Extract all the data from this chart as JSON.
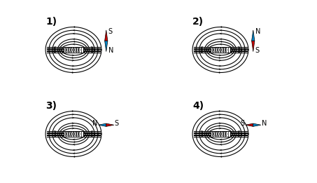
{
  "panels": [
    {
      "label": "1)",
      "compass": {
        "top": "S",
        "bottom": "N",
        "top_color": "#cc0000",
        "bottom_color": "#0088cc",
        "orientation": "vertical"
      },
      "flow_dir": 1
    },
    {
      "label": "2)",
      "compass": {
        "top": "N",
        "bottom": "S",
        "top_color": "#0088cc",
        "bottom_color": "#cc0000",
        "orientation": "vertical"
      },
      "flow_dir": 1
    },
    {
      "label": "3)",
      "compass": {
        "left": "N",
        "right": "S",
        "left_color": "#0088cc",
        "right_color": "#cc0000",
        "orientation": "horizontal"
      },
      "flow_dir": -1
    },
    {
      "label": "4)",
      "compass": {
        "left": "S",
        "right": "N",
        "left_color": "#cc0000",
        "right_color": "#0088cc",
        "orientation": "horizontal"
      },
      "flow_dir": -1
    }
  ],
  "bg_color": "#ffffff",
  "line_color": "#000000",
  "magnet_color": "#cccccc",
  "label_fontsize": 10,
  "compass_fontsize": 7
}
